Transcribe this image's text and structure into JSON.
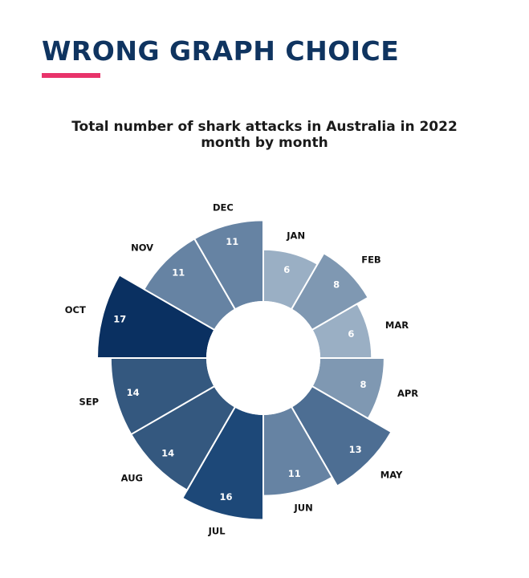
{
  "header": {
    "title": "WRONG GRAPH CHOICE",
    "accent_color": "#e8336a",
    "title_color": "#0f3460"
  },
  "chart_data": {
    "type": "pie",
    "variant": "polar-area donut",
    "title_lines": [
      "Total number of shark attacks in Australia in 2022",
      "month by month"
    ],
    "categories": [
      "JAN",
      "FEB",
      "MAR",
      "APR",
      "MAY",
      "JUN",
      "JUL",
      "AUG",
      "SEP",
      "OCT",
      "NOV",
      "DEC"
    ],
    "values": [
      6,
      8,
      6,
      8,
      13,
      11,
      16,
      14,
      14,
      17,
      11,
      11
    ],
    "colors": [
      "#9aafc4",
      "#7f98b2",
      "#9aafc4",
      "#7f98b2",
      "#4d6e93",
      "#6683a3",
      "#1d4878",
      "#34587f",
      "#34587f",
      "#0a3061",
      "#6683a3",
      "#6683a3"
    ],
    "legend": "none"
  }
}
